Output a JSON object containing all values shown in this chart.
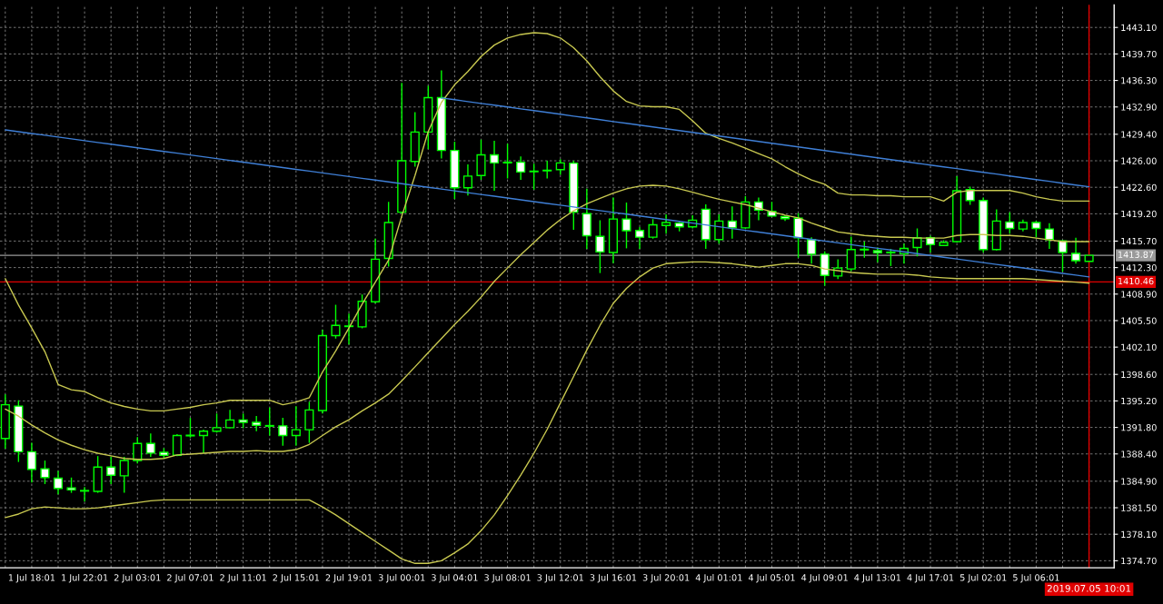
{
  "chart_data": {
    "type": "candlestick",
    "categories": [
      null,
      null,
      "1 Jul 18:01",
      null,
      null,
      null,
      "1 Jul 22:01",
      null,
      null,
      null,
      "2 Jul 03:01",
      null,
      null,
      null,
      "2 Jul 07:01",
      null,
      null,
      null,
      "2 Jul 11:01",
      null,
      null,
      null,
      "2 Jul 15:01",
      null,
      null,
      null,
      "2 Jul 19:01",
      null,
      null,
      null,
      "3 Jul 00:01",
      null,
      null,
      null,
      "3 Jul 04:01",
      null,
      null,
      null,
      "3 Jul 08:01",
      null,
      null,
      null,
      "3 Jul 12:01",
      null,
      null,
      null,
      "3 Jul 16:01",
      null,
      null,
      null,
      "3 Jul 20:01",
      null,
      null,
      null,
      "4 Jul 01:01",
      null,
      null,
      null,
      "4 Jul 05:01",
      null,
      null,
      null,
      "4 Jul 09:01",
      null,
      null,
      null,
      "4 Jul 13:01",
      null,
      null,
      null,
      "4 Jul 17:01",
      null,
      null,
      null,
      "5 Jul 02:01",
      null,
      null,
      null,
      "5 Jul 06:01",
      null,
      null,
      null,
      "2019.07.05 10:01"
    ],
    "ohlc": [
      [
        1390.38,
        1396.03,
        1389.06,
        1394.71
      ],
      [
        1394.53,
        1395.28,
        1387.37,
        1388.68
      ],
      [
        1388.68,
        1389.82,
        1384.73,
        1386.42
      ],
      [
        1386.5,
        1387.55,
        1384.54,
        1385.37
      ],
      [
        1385.29,
        1386.23,
        1383.22,
        1383.97
      ],
      [
        1384.05,
        1385.37,
        1383.41,
        1383.78
      ],
      [
        1383.63,
        1384.16,
        1382.28,
        1383.71
      ],
      [
        1383.6,
        1388.12,
        1383.41,
        1386.72
      ],
      [
        1386.72,
        1388.01,
        1384.54,
        1385.67
      ],
      [
        1385.59,
        1388.01,
        1383.41,
        1387.55
      ],
      [
        1387.55,
        1390.57,
        1387.18,
        1389.74
      ],
      [
        1389.74,
        1391.02,
        1388.01,
        1388.5
      ],
      [
        1388.61,
        1389.14,
        1387.86,
        1388.23
      ],
      [
        1388.23,
        1390.95,
        1388.12,
        1390.76
      ],
      [
        1390.72,
        1393.02,
        1390.49,
        1390.8
      ],
      [
        1390.76,
        1391.51,
        1388.5,
        1391.32
      ],
      [
        1391.32,
        1393.58,
        1391.13,
        1391.77
      ],
      [
        1391.77,
        1394.04,
        1391.7,
        1392.76
      ],
      [
        1392.76,
        1393.58,
        1391.7,
        1392.45
      ],
      [
        1392.45,
        1393.28,
        1391.32,
        1392.08
      ],
      [
        1391.96,
        1394.34,
        1390.76,
        1392.04
      ],
      [
        1392.0,
        1393.02,
        1389.44,
        1390.76
      ],
      [
        1390.76,
        1394.53,
        1389.44,
        1391.51
      ],
      [
        1391.51,
        1395.09,
        1389.82,
        1394.04
      ],
      [
        1393.96,
        1404.33,
        1393.58,
        1403.57
      ],
      [
        1403.57,
        1407.53,
        1403.19,
        1404.89
      ],
      [
        1404.74,
        1406.4,
        1402.44,
        1404.81
      ],
      [
        1404.7,
        1408.85,
        1404.51,
        1407.98
      ],
      [
        1407.91,
        1416.01,
        1407.72,
        1413.37
      ],
      [
        1413.48,
        1420.72,
        1412.43,
        1418.08
      ],
      [
        1419.4,
        1435.98,
        1419.21,
        1426.0
      ],
      [
        1425.92,
        1432.22,
        1425.24,
        1429.69
      ],
      [
        1429.69,
        1435.61,
        1427.5,
        1434.1
      ],
      [
        1434.1,
        1437.6,
        1426.3,
        1427.32
      ],
      [
        1427.32,
        1428.45,
        1421.1,
        1422.53
      ],
      [
        1422.53,
        1425.54,
        1421.55,
        1424.04
      ],
      [
        1424.11,
        1428.71,
        1423.55,
        1426.75
      ],
      [
        1426.75,
        1428.56,
        1422.15,
        1425.73
      ],
      [
        1425.73,
        1428.18,
        1423.74,
        1425.81
      ],
      [
        1425.81,
        1426.56,
        1423.55,
        1424.56
      ],
      [
        1424.6,
        1425.62,
        1422.3,
        1424.68
      ],
      [
        1424.72,
        1426.0,
        1423.74,
        1424.79
      ],
      [
        1424.87,
        1426.19,
        1424.19,
        1425.73
      ],
      [
        1425.7,
        1426.0,
        1417.14,
        1419.4
      ],
      [
        1419.21,
        1422.42,
        1414.69,
        1416.39
      ],
      [
        1416.31,
        1418.38,
        1411.6,
        1414.31
      ],
      [
        1414.24,
        1421.29,
        1412.88,
        1418.53
      ],
      [
        1418.53,
        1420.64,
        1414.77,
        1417.03
      ],
      [
        1417.06,
        1417.51,
        1414.69,
        1416.2
      ],
      [
        1416.2,
        1418.53,
        1416.01,
        1417.78
      ],
      [
        1417.7,
        1419.14,
        1416.65,
        1418.08
      ],
      [
        1418.01,
        1418.16,
        1416.95,
        1417.52
      ],
      [
        1417.52,
        1419.02,
        1417.33,
        1418.38
      ],
      [
        1419.78,
        1420.42,
        1414.69,
        1415.9
      ],
      [
        1415.9,
        1419.14,
        1415.37,
        1418.27
      ],
      [
        1418.27,
        1420.15,
        1416.01,
        1417.4
      ],
      [
        1417.4,
        1421.47,
        1417.25,
        1420.72
      ],
      [
        1420.72,
        1421.28,
        1418.38,
        1419.66
      ],
      [
        1419.51,
        1420.72,
        1418.83,
        1418.91
      ],
      [
        1418.83,
        1419.02,
        1418.27,
        1418.57
      ],
      [
        1418.64,
        1419.28,
        1413.56,
        1416.12
      ],
      [
        1415.89,
        1416.19,
        1412.8,
        1414.01
      ],
      [
        1414.01,
        1414.38,
        1409.97,
        1411.29
      ],
      [
        1411.22,
        1413.37,
        1410.84,
        1412.24
      ],
      [
        1412.12,
        1416.27,
        1411.86,
        1414.61
      ],
      [
        1414.57,
        1415.63,
        1413.56,
        1414.65
      ],
      [
        1414.46,
        1414.87,
        1412.99,
        1414.2
      ],
      [
        1414.2,
        1414.69,
        1412.5,
        1414.27
      ],
      [
        1414.08,
        1415.37,
        1412.8,
        1414.76
      ],
      [
        1414.87,
        1417.32,
        1413.74,
        1416.12
      ],
      [
        1416.12,
        1416.38,
        1414.23,
        1415.25
      ],
      [
        1415.14,
        1415.82,
        1415.06,
        1415.52
      ],
      [
        1415.63,
        1424.03,
        1415.52,
        1422.15
      ],
      [
        1422.3,
        1422.68,
        1420.34,
        1420.9
      ],
      [
        1420.9,
        1421.28,
        1414.23,
        1414.61
      ],
      [
        1414.61,
        1419.77,
        1414.5,
        1418.27
      ],
      [
        1418.15,
        1419.4,
        1416.65,
        1417.32
      ],
      [
        1417.25,
        1418.45,
        1416.95,
        1418.08
      ],
      [
        1418.08,
        1418.27,
        1416.19,
        1417.32
      ],
      [
        1417.25,
        1418.0,
        1414.69,
        1415.89
      ],
      [
        1415.74,
        1415.82,
        1411.75,
        1414.23
      ],
      [
        1414.12,
        1416.12,
        1412.8,
        1413.18
      ],
      [
        1413.1,
        1413.87,
        1413.1,
        1413.87
      ]
    ],
    "series": [
      {
        "type": "line",
        "color": "#c8c850",
        "values": [
          1410.88,
          1407.49,
          1404.55,
          1401.5,
          1397.31,
          1396.63,
          1396.41,
          1395.62,
          1394.94,
          1394.49,
          1394.15,
          1393.92,
          1393.92,
          1394.15,
          1394.37,
          1394.71,
          1394.94,
          1395.28,
          1395.28,
          1395.28,
          1395.28,
          1394.71,
          1395.05,
          1395.62,
          1398.9,
          1401.61,
          1404.55,
          1407.6,
          1410.43,
          1413.25,
          1418.91,
          1424.11,
          1429.76,
          1433.49,
          1435.75,
          1437.45,
          1439.37,
          1440.84,
          1441.75,
          1442.2,
          1442.42,
          1442.31,
          1441.75,
          1440.5,
          1438.81,
          1436.77,
          1434.96,
          1433.61,
          1433.04,
          1432.93,
          1432.93,
          1432.59,
          1431.12,
          1429.53,
          1428.86,
          1428.29,
          1427.61,
          1426.93,
          1426.26,
          1425.24,
          1424.33,
          1423.54,
          1422.98,
          1421.85,
          1421.62,
          1421.62,
          1421.51,
          1421.51,
          1421.39,
          1421.39,
          1421.39,
          1420.83,
          1421.96,
          1422.19,
          1422.19,
          1422.19,
          1422.19,
          1421.85,
          1421.39,
          1421.06,
          1420.83,
          1420.83,
          1420.83
        ]
      },
      {
        "type": "line",
        "color": "#c8c850",
        "values": [
          1394.15,
          1393.24,
          1392.11,
          1391.09,
          1390.19,
          1389.51,
          1388.95,
          1388.49,
          1388.15,
          1387.82,
          1387.7,
          1387.7,
          1387.82,
          1388.27,
          1388.38,
          1388.49,
          1388.61,
          1388.72,
          1388.72,
          1388.83,
          1388.72,
          1388.72,
          1388.95,
          1389.62,
          1390.76,
          1391.89,
          1392.79,
          1393.92,
          1394.94,
          1396.07,
          1397.77,
          1399.57,
          1401.38,
          1403.19,
          1405.0,
          1406.7,
          1408.51,
          1410.54,
          1412.24,
          1413.93,
          1415.52,
          1417.1,
          1418.45,
          1419.59,
          1420.49,
          1421.17,
          1421.85,
          1422.41,
          1422.75,
          1422.86,
          1422.75,
          1422.41,
          1421.96,
          1421.51,
          1421.06,
          1420.72,
          1420.38,
          1419.92,
          1419.47,
          1419.02,
          1418.68,
          1418.0,
          1417.44,
          1416.87,
          1416.65,
          1416.42,
          1416.31,
          1416.19,
          1416.19,
          1416.08,
          1416.08,
          1416.08,
          1416.42,
          1416.53,
          1416.53,
          1416.42,
          1416.42,
          1416.31,
          1416.08,
          1415.85,
          1415.63,
          1415.63,
          1415.63
        ]
      },
      {
        "type": "line",
        "color": "#c8c850",
        "values": [
          1380.24,
          1380.69,
          1381.37,
          1381.6,
          1381.48,
          1381.37,
          1381.37,
          1381.48,
          1381.71,
          1381.94,
          1382.16,
          1382.39,
          1382.5,
          1382.5,
          1382.5,
          1382.5,
          1382.5,
          1382.5,
          1382.5,
          1382.5,
          1382.5,
          1382.5,
          1382.5,
          1382.5,
          1381.6,
          1380.58,
          1379.45,
          1378.32,
          1377.19,
          1376.06,
          1374.93,
          1374.36,
          1374.36,
          1374.7,
          1375.72,
          1376.85,
          1378.55,
          1380.58,
          1383.07,
          1385.67,
          1388.49,
          1391.55,
          1394.94,
          1398.33,
          1401.72,
          1404.89,
          1407.71,
          1409.64,
          1411.11,
          1412.24,
          1412.8,
          1412.92,
          1413.03,
          1413.03,
          1412.92,
          1412.8,
          1412.58,
          1412.35,
          1412.58,
          1412.8,
          1412.8,
          1412.58,
          1412.12,
          1411.9,
          1411.67,
          1411.56,
          1411.45,
          1411.45,
          1411.45,
          1411.33,
          1411.11,
          1410.99,
          1410.88,
          1410.88,
          1410.88,
          1410.88,
          1410.88,
          1410.88,
          1410.77,
          1410.65,
          1410.54,
          1410.43,
          1410.31
        ]
      },
      {
        "type": "line",
        "color": "#3f7fd6",
        "values": [
          null,
          null,
          null,
          null,
          null,
          null,
          null,
          null,
          null,
          null,
          null,
          null,
          null,
          null,
          null,
          null,
          null,
          null,
          null,
          null,
          null,
          null,
          null,
          null,
          null,
          null,
          null,
          null,
          null,
          null,
          null,
          null,
          null,
          1434.06,
          1433.83,
          1433.59,
          1433.36,
          1433.13,
          1432.9,
          1432.66,
          1432.43,
          1432.2,
          1431.97,
          1431.73,
          1431.5,
          1431.27,
          1431.03,
          1430.8,
          1430.57,
          1430.34,
          1430.1,
          1429.87,
          1429.64,
          1429.41,
          1429.17,
          1428.94,
          1428.71,
          1428.48,
          1428.24,
          1428.01,
          1427.78,
          1427.54,
          1427.31,
          1427.08,
          1426.85,
          1426.61,
          1426.38,
          1426.15,
          1425.92,
          1425.68,
          1425.45,
          1425.22,
          1424.99,
          1424.75,
          1424.52,
          1424.29,
          1424.05,
          1423.82,
          1423.59,
          1423.36,
          1423.12,
          1422.89,
          1422.66
        ]
      },
      {
        "type": "line",
        "color": "#3f7fd6",
        "values": [
          1429.96,
          1429.73,
          1429.5,
          1429.27,
          1429.04,
          1428.81,
          1428.58,
          1428.35,
          1428.12,
          1427.89,
          1427.66,
          1427.43,
          1427.2,
          1426.97,
          1426.74,
          1426.51,
          1426.28,
          1426.05,
          1425.82,
          1425.59,
          1425.36,
          1425.13,
          1424.9,
          1424.67,
          1424.44,
          1424.21,
          1423.98,
          1423.75,
          1423.52,
          1423.29,
          1423.06,
          1422.83,
          1422.6,
          1422.37,
          1422.14,
          1421.91,
          1421.68,
          1421.45,
          1421.22,
          1420.99,
          1420.76,
          1420.53,
          1420.3,
          1420.07,
          1419.84,
          1419.61,
          1419.38,
          1419.15,
          1418.92,
          1418.69,
          1418.46,
          1418.23,
          1418.0,
          1417.77,
          1417.54,
          1417.31,
          1417.08,
          1416.85,
          1416.62,
          1416.39,
          1416.16,
          1415.93,
          1415.7,
          1415.47,
          1415.24,
          1415.01,
          1414.78,
          1414.55,
          1414.32,
          1414.09,
          1413.86,
          1413.63,
          1413.4,
          1413.17,
          1412.94,
          1412.71,
          1412.48,
          1412.25,
          1412.02,
          1411.79,
          1411.56,
          1411.33,
          1411.1
        ]
      }
    ],
    "ylim": [
      1373.8,
      1446.0
    ],
    "yticks": [
      {
        "value": 1374.7,
        "label": "1374.70"
      },
      {
        "value": 1378.1,
        "label": "1378.10"
      },
      {
        "value": 1381.5,
        "label": "1381.50"
      },
      {
        "value": 1384.9,
        "label": "1384.90"
      },
      {
        "value": 1388.4,
        "label": "1388.40"
      },
      {
        "value": 1391.8,
        "label": "1391.80"
      },
      {
        "value": 1395.2,
        "label": "1395.20"
      },
      {
        "value": 1398.6,
        "label": "1398.60"
      },
      {
        "value": 1402.1,
        "label": "1402.10"
      },
      {
        "value": 1405.5,
        "label": "1405.50"
      },
      {
        "value": 1408.9,
        "label": "1408.90"
      },
      {
        "value": 1412.3,
        "label": "1412.30"
      },
      {
        "value": 1415.7,
        "label": "1415.70"
      },
      {
        "value": 1419.2,
        "label": "1419.20"
      },
      {
        "value": 1422.6,
        "label": "1422.60"
      },
      {
        "value": 1426.0,
        "label": "1426.00"
      },
      {
        "value": 1429.4,
        "label": "1429.40"
      },
      {
        "value": 1432.9,
        "label": "1432.90"
      },
      {
        "value": 1436.3,
        "label": "1436.30"
      },
      {
        "value": 1439.7,
        "label": "1439.70"
      },
      {
        "value": 1443.1,
        "label": "1443.10"
      }
    ],
    "grid": true,
    "ref_lines": [
      {
        "axis": "y",
        "value": 1413.87,
        "label": "1413.87",
        "color": "#9a9a9a"
      },
      {
        "axis": "y",
        "value": 1410.46,
        "label": "1410.46",
        "color": "#e00000"
      },
      {
        "axis": "x",
        "value": "2019.07.05 10:01",
        "color": "#e00000"
      }
    ]
  }
}
